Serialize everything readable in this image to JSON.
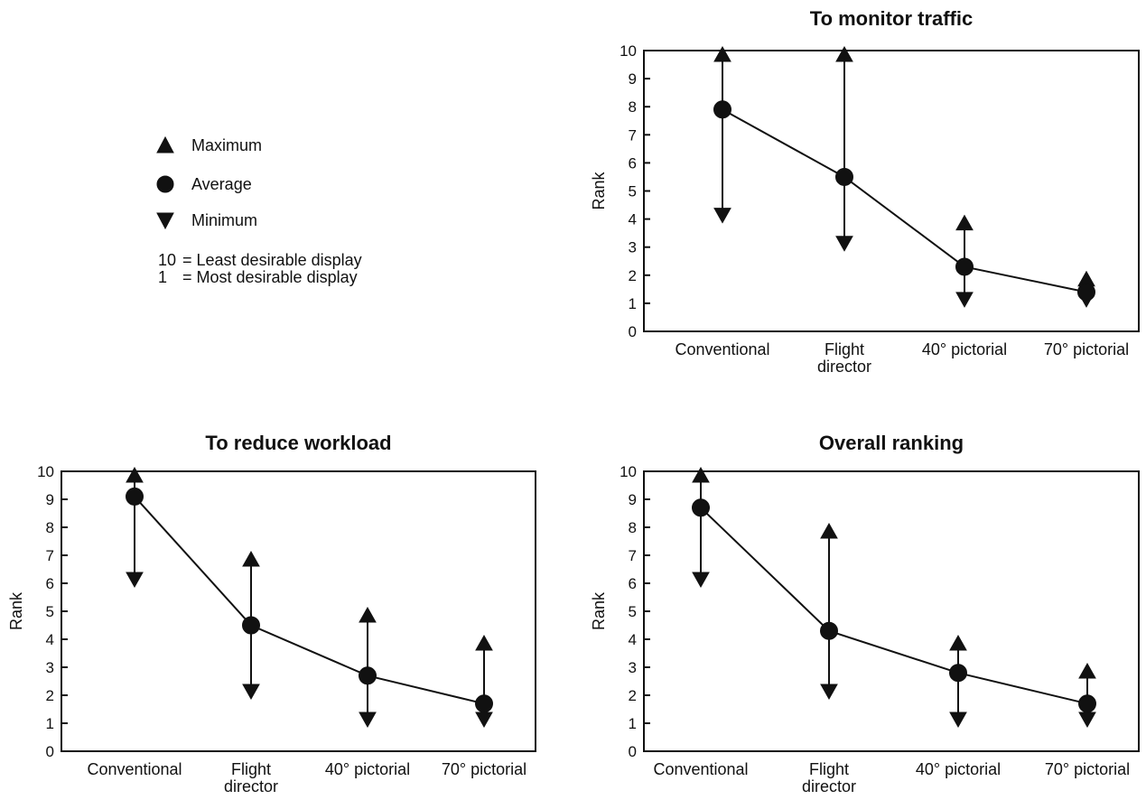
{
  "legend": {
    "items": [
      {
        "marker": "triangle-up",
        "label": "Maximum"
      },
      {
        "marker": "circle",
        "label": "Average"
      },
      {
        "marker": "triangle-down",
        "label": "Minimum"
      }
    ],
    "notes": [
      {
        "value": "10",
        "text": "= Least desirable display"
      },
      {
        "value": "1",
        "text": "= Most desirable display"
      }
    ]
  },
  "chart_data": [
    {
      "type": "line",
      "title": "To monitor traffic",
      "xlabel": "",
      "ylabel": "Rank",
      "ylim": [
        0,
        10
      ],
      "yticks": [
        "0",
        "1",
        "2",
        "3",
        "4",
        "5",
        "6",
        "7",
        "8",
        "9",
        "10"
      ],
      "categories": [
        [
          "Conventional"
        ],
        [
          "Flight",
          "director"
        ],
        [
          "40° pictorial"
        ],
        [
          "70° pictorial"
        ]
      ],
      "maximum": [
        10,
        10,
        4,
        2
      ],
      "average": [
        7.9,
        5.5,
        2.3,
        1.4
      ],
      "minimum": [
        4,
        3,
        1,
        1
      ],
      "grid": false,
      "legend": "top-left"
    },
    {
      "type": "line",
      "title": "To reduce workload",
      "xlabel": "",
      "ylabel": "Rank",
      "ylim": [
        0,
        10
      ],
      "yticks": [
        "0",
        "1",
        "2",
        "3",
        "4",
        "5",
        "6",
        "7",
        "8",
        "9",
        "10"
      ],
      "categories": [
        [
          "Conventional"
        ],
        [
          "Flight",
          "director"
        ],
        [
          "40° pictorial"
        ],
        [
          "70° pictorial"
        ]
      ],
      "maximum": [
        10,
        7,
        5,
        4
      ],
      "average": [
        9.1,
        4.5,
        2.7,
        1.7
      ],
      "minimum": [
        6,
        2,
        1,
        1
      ],
      "grid": false,
      "legend": "top-left"
    },
    {
      "type": "line",
      "title": "Overall ranking",
      "xlabel": "",
      "ylabel": "Rank",
      "ylim": [
        0,
        10
      ],
      "yticks": [
        "0",
        "1",
        "2",
        "3",
        "4",
        "5",
        "6",
        "7",
        "8",
        "9",
        "10"
      ],
      "categories": [
        [
          "Conventional"
        ],
        [
          "Flight",
          "director"
        ],
        [
          "40° pictorial"
        ],
        [
          "70° pictorial"
        ]
      ],
      "maximum": [
        10,
        8,
        4,
        3
      ],
      "average": [
        8.7,
        4.3,
        2.8,
        1.7
      ],
      "minimum": [
        6,
        2,
        1,
        1
      ],
      "grid": false,
      "legend": "top-left"
    }
  ]
}
